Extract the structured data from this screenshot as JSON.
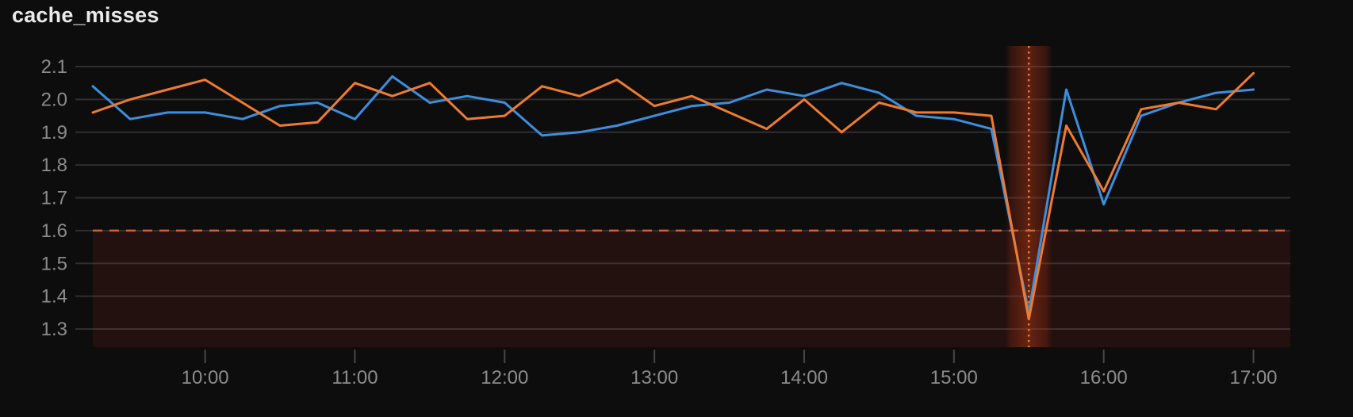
{
  "panel": {
    "title": "cache_misses"
  },
  "colors": {
    "background": "#0d0d0d",
    "title_text": "#eaeaea",
    "grid": "#2f2f31",
    "axis_text": "#8d8b8b",
    "tick_mark": "#47474a",
    "series_blue": "#3d8edf",
    "series_orange": "#ef7b2e",
    "threshold_line": "#d95c35",
    "threshold_region_fill": "rgba(226,56,28,0.10)",
    "annotation_band": "#b23012",
    "annotation_center_line": "#e8873f"
  },
  "chart_data": {
    "type": "line",
    "title": "cache_misses",
    "xlabel": "",
    "ylabel": "",
    "legend": "none",
    "grid": true,
    "x": [
      "09:15",
      "09:30",
      "09:45",
      "10:00",
      "10:15",
      "10:30",
      "10:45",
      "11:00",
      "11:15",
      "11:30",
      "11:45",
      "12:00",
      "12:15",
      "12:30",
      "12:45",
      "13:00",
      "13:15",
      "13:30",
      "13:45",
      "14:00",
      "14:15",
      "14:30",
      "14:45",
      "15:00",
      "15:15",
      "15:30",
      "15:45",
      "16:00",
      "16:15",
      "16:30",
      "16:45",
      "17:00"
    ],
    "series": [
      {
        "name": "blue",
        "values": [
          2.04,
          1.94,
          1.96,
          1.96,
          1.94,
          1.98,
          1.99,
          1.94,
          2.07,
          1.99,
          2.01,
          1.99,
          1.89,
          1.9,
          1.92,
          1.95,
          1.98,
          1.99,
          2.03,
          2.01,
          2.05,
          2.02,
          1.95,
          1.94,
          1.91,
          1.35,
          2.03,
          1.68,
          1.95,
          1.99,
          2.02,
          2.03
        ]
      },
      {
        "name": "orange",
        "values": [
          1.96,
          2.0,
          2.03,
          2.06,
          1.99,
          1.92,
          1.93,
          2.05,
          2.01,
          2.05,
          1.94,
          1.95,
          2.04,
          2.01,
          2.06,
          1.98,
          2.01,
          1.96,
          1.91,
          2.0,
          1.9,
          1.99,
          1.96,
          1.96,
          1.95,
          1.33,
          1.92,
          1.72,
          1.97,
          1.99,
          1.97,
          2.08
        ]
      }
    ],
    "yticks": [
      2.1,
      2.0,
      1.9,
      1.8,
      1.7,
      1.6,
      1.5,
      1.4,
      1.3
    ],
    "ytick_labels": [
      "2.1",
      "2.0",
      "1.9",
      "1.8",
      "1.7",
      "1.6",
      "1.5",
      "1.4",
      "1.3"
    ],
    "xticks": [
      "10:00",
      "11:00",
      "12:00",
      "13:00",
      "14:00",
      "15:00",
      "16:00",
      "17:00"
    ],
    "ylim": [
      1.24,
      2.16
    ],
    "threshold": {
      "value": 1.6,
      "style": "dashed",
      "region_below": true
    },
    "annotation_band": {
      "time": "15:30",
      "style": "vertical-band-with-dotted-center-line"
    }
  }
}
